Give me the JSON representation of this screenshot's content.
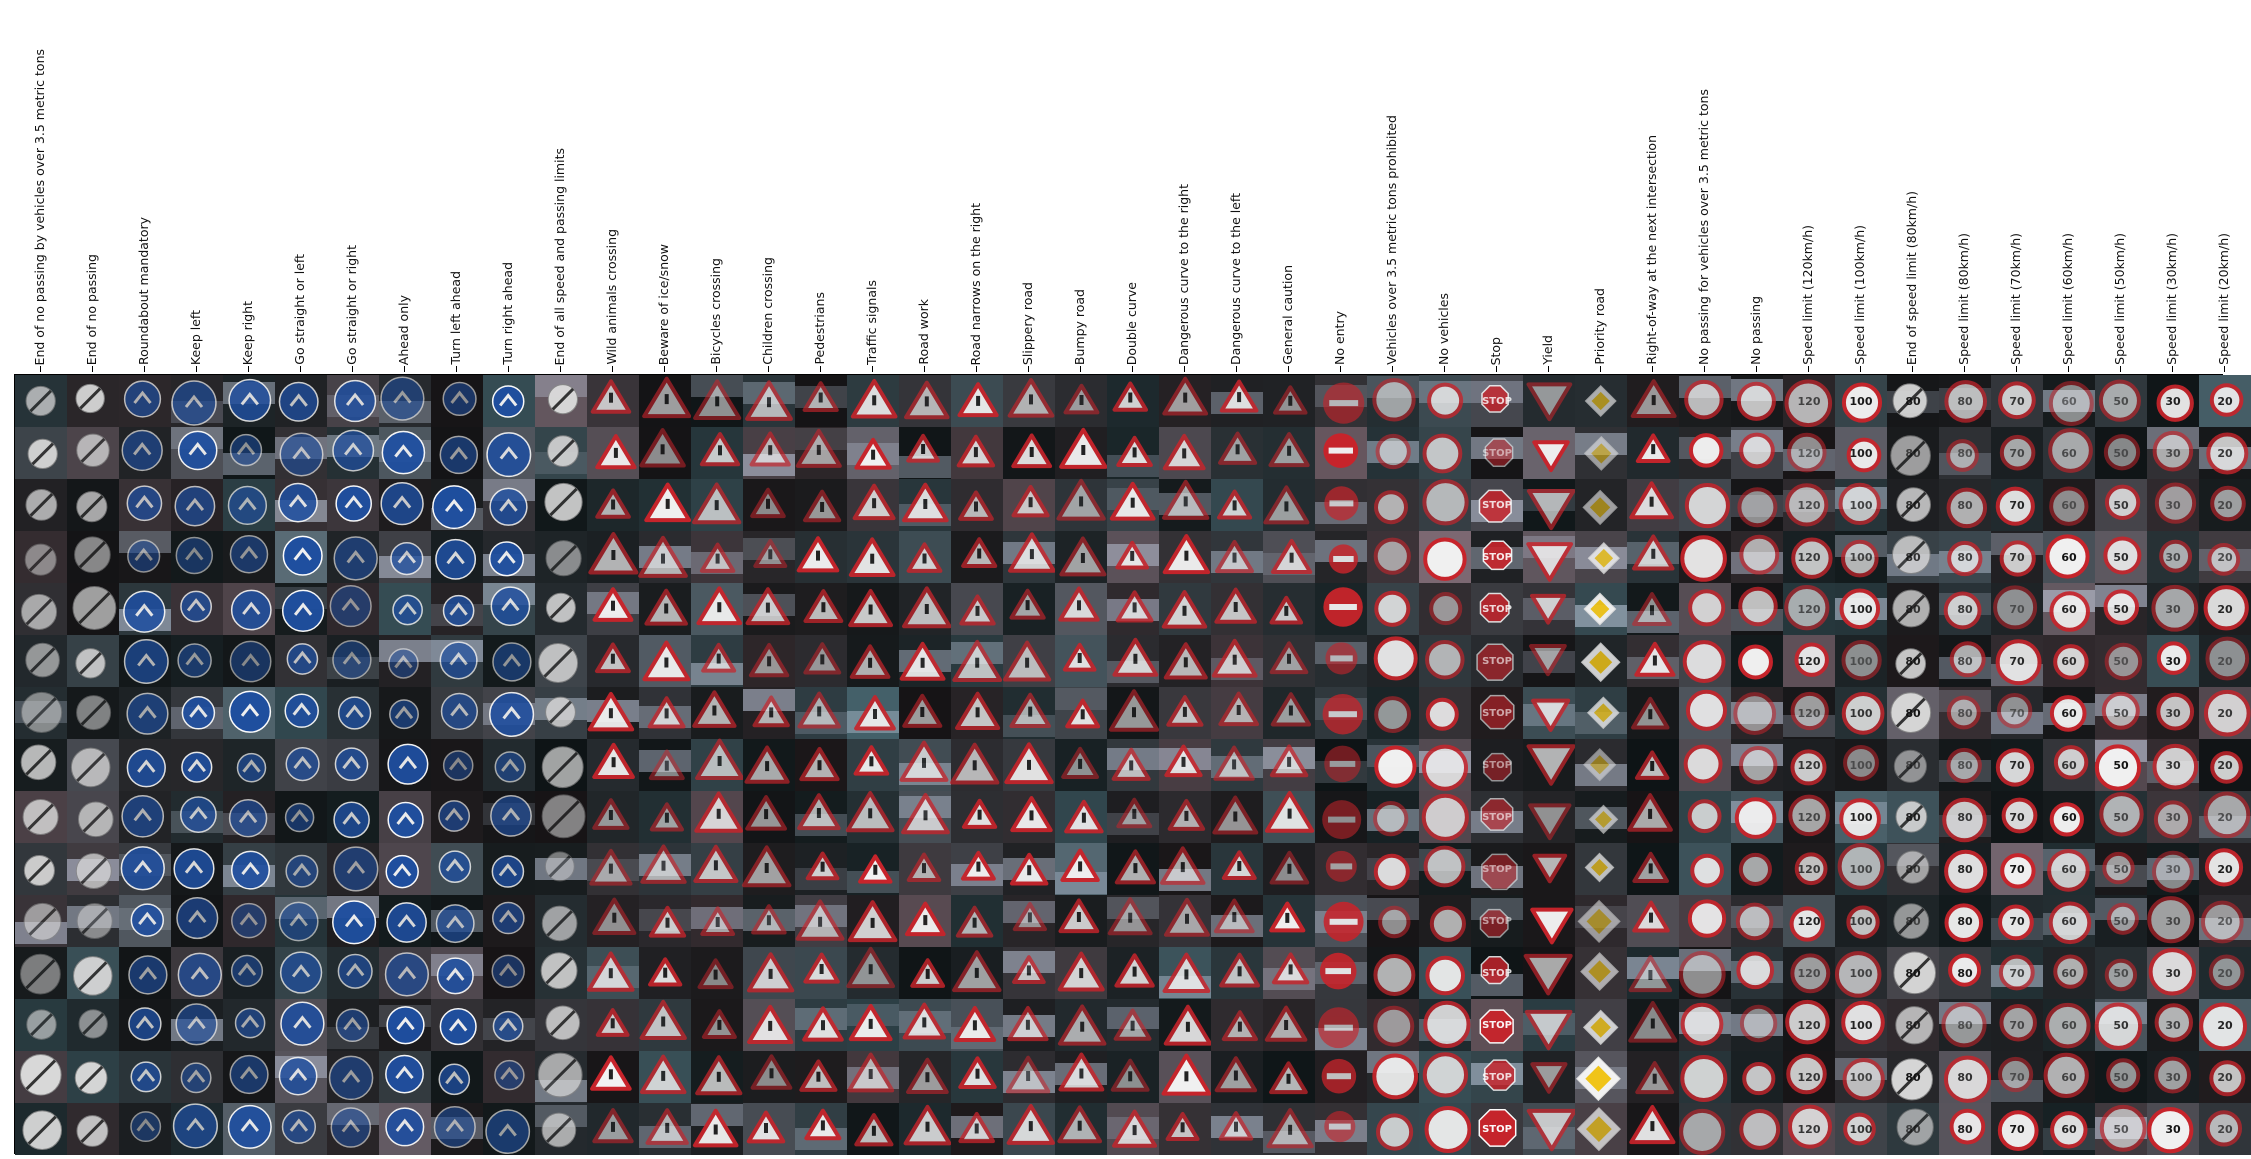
{
  "figure": {
    "columns": [
      "End of no passing by vehicles over 3.5 metric tons",
      "End of no passing",
      "Roundabout mandatory",
      "Keep left",
      "Keep right",
      "Go straight or left",
      "Go straight or right",
      "Ahead only",
      "Turn left ahead",
      "Turn right ahead",
      "End of all speed and passing limits",
      "Wild animals crossing",
      "Beware of ice/snow",
      "Bicycles crossing",
      "Children crossing",
      "Pedestrians",
      "Traffic signals",
      "Road work",
      "Road narrows on the right",
      "Slippery road",
      "Bumpy road",
      "Double curve",
      "Dangerous curve to the right",
      "Dangerous curve to the left",
      "General caution",
      "No entry",
      "Vehicles over 3.5 metric tons prohibited",
      "No vehicles",
      "Stop",
      "Yield",
      "Priority road",
      "Right-of-way at the next intersection",
      "No passing for vehicles over 3.5 metric tons",
      "No passing",
      "Speed limit (120km/h)",
      "Speed limit (100km/h)",
      "End of speed limit (80km/h)",
      "Speed limit (80km/h)",
      "Speed limit (70km/h)",
      "Speed limit (60km/h)",
      "Speed limit (50km/h)",
      "Speed limit (30km/h)",
      "Speed limit (20km/h)"
    ],
    "rows_per_column": 15,
    "sign_kinds": [
      "end-restriction",
      "end-restriction",
      "blue-circle-roundabout",
      "blue-circle-arrow",
      "blue-circle-arrow",
      "blue-circle-arrow",
      "blue-circle-arrow",
      "blue-circle-arrow",
      "blue-circle-arrow",
      "blue-circle-arrow",
      "end-restriction",
      "warning-triangle",
      "warning-triangle",
      "warning-triangle",
      "warning-triangle",
      "warning-triangle",
      "warning-triangle",
      "warning-triangle",
      "warning-triangle",
      "warning-triangle",
      "warning-triangle",
      "warning-triangle",
      "warning-triangle",
      "warning-triangle",
      "warning-triangle",
      "no-entry",
      "red-circle",
      "red-circle",
      "stop-octagon",
      "yield-triangle",
      "priority-diamond",
      "warning-triangle",
      "red-circle",
      "red-circle",
      "speed-limit",
      "speed-limit",
      "end-restriction",
      "speed-limit",
      "speed-limit",
      "speed-limit",
      "speed-limit",
      "speed-limit",
      "speed-limit"
    ],
    "sign_texts": {
      "28": "STOP",
      "34": "120",
      "35": "100",
      "36": "80",
      "37": "80",
      "38": "70",
      "39": "60",
      "40": "50",
      "41": "30",
      "42": "20"
    },
    "colors": {
      "sign_red": "#c8242b",
      "sign_blue": "#1f4fa0",
      "sign_white": "#f2f2f2",
      "sign_yellow": "#f0c419",
      "frame": "#000000"
    }
  }
}
